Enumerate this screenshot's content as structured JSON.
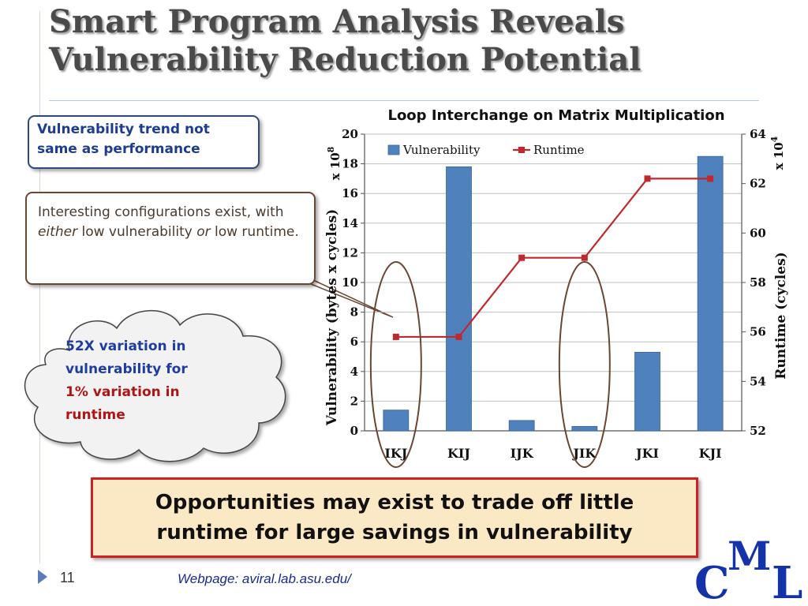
{
  "slide": {
    "title_line1": "Smart Program Analysis Reveals",
    "title_line2": "Vulnerability Reduction Potential",
    "callout1": "Vulnerability trend not same as performance",
    "callout2_part1": "Interesting configurations exist, with ",
    "callout2_either": "either",
    "callout2_part2": " low vulnerability ",
    "callout2_or": "or",
    "callout2_part3": " low runtime.",
    "cloud_line1": "52X variation in",
    "cloud_line2": "vulnerability for",
    "cloud_line3": "1% variation in",
    "cloud_line4": "runtime",
    "bottom_line1": "Opportunities may exist to trade off little",
    "bottom_line2": "runtime for large savings in vulnerability",
    "page_number": "11",
    "webpage": "Webpage: aviral.lab.asu.edu/",
    "logo_letters": [
      "C",
      "M",
      "L"
    ]
  },
  "colors": {
    "bar": "#4f81bd",
    "line": "#c0282d",
    "ellipse": "#6b4632",
    "logo": "#1533a8"
  },
  "chart_data": {
    "type": "bar",
    "title": "Loop Interchange on Matrix Multiplication",
    "categories": [
      "IKJ",
      "KIJ",
      "IJK",
      "JIK",
      "JKI",
      "KJI"
    ],
    "series": [
      {
        "name": "Vulnerability",
        "type": "bar",
        "axis": "left",
        "values": [
          1.4,
          17.8,
          0.7,
          0.3,
          5.3,
          18.5
        ]
      },
      {
        "name": "Runtime",
        "type": "line",
        "axis": "right",
        "values": [
          55.8,
          55.8,
          59.0,
          59.0,
          62.2,
          62.2
        ]
      }
    ],
    "ylabel": "Vulnerability  (bytes x cycles)",
    "ylabel_exponent": "x 10",
    "ylabel_exponent_power": "8",
    "y2label": "Runtime (cycles)",
    "y2label_exponent": "x 10",
    "y2label_exponent_power": "4",
    "ylim": [
      0,
      20
    ],
    "yticks": [
      "0",
      "2",
      "4",
      "6",
      "8",
      "10",
      "12",
      "14",
      "16",
      "18",
      "20"
    ],
    "y2lim": [
      52,
      64
    ],
    "y2ticks": [
      "52",
      "54",
      "56",
      "58",
      "60",
      "62",
      "64"
    ],
    "grid": true,
    "legend_position": "top-left",
    "highlighted_categories": [
      "IKJ",
      "JIK"
    ]
  }
}
